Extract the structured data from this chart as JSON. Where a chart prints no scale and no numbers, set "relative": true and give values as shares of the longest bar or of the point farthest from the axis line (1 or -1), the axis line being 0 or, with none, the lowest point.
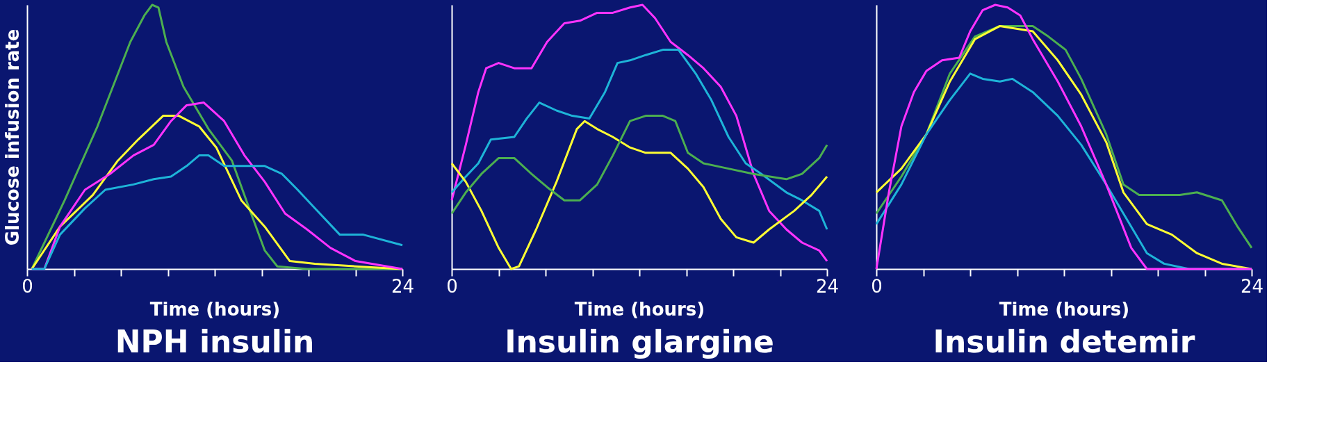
{
  "chart_data": [
    {
      "type": "line",
      "title": "NPH insulin",
      "xlabel": "Time (hours)",
      "ylabel": "Glucose infusion rate",
      "relative": true,
      "xlim": [
        0,
        24
      ],
      "xticks": [
        0,
        {
          "value": 3,
          "label": null
        },
        {
          "value": 6,
          "label": null
        },
        {
          "value": 9,
          "label": null
        },
        {
          "value": 12,
          "label": null
        },
        {
          "value": 15,
          "label": null
        },
        {
          "value": 18,
          "label": null
        },
        {
          "value": 21,
          "label": null
        },
        24
      ],
      "grid": false,
      "legend": false,
      "marker": "none",
      "line_style": "solid",
      "series": [
        {
          "color": "#4caf50",
          "x": [
            0.3,
            2.4,
            4.5,
            6.6,
            7.5,
            8.0,
            8.4,
            8.9,
            10.0,
            11.6,
            13.1,
            14.2,
            15.2,
            16.0,
            17.9,
            24.0
          ],
          "values": [
            0,
            0.26,
            0.54,
            0.86,
            0.96,
            1.0,
            0.99,
            0.86,
            0.69,
            0.53,
            0.41,
            0.23,
            0.07,
            0.01,
            0,
            0
          ]
        },
        {
          "color": "#ffff33",
          "x": [
            0.3,
            2.1,
            4.2,
            5.8,
            7.1,
            8.7,
            9.7,
            11.0,
            12.1,
            13.7,
            15.2,
            16.8,
            18.4,
            21.0,
            24.0
          ],
          "values": [
            0,
            0.16,
            0.28,
            0.41,
            0.49,
            0.58,
            0.58,
            0.54,
            0.46,
            0.26,
            0.16,
            0.03,
            0.02,
            0.01,
            0
          ]
        },
        {
          "color": "#ff33ff",
          "x": [
            0.3,
            1.1,
            2.1,
            3.7,
            5.3,
            6.8,
            8.1,
            9.2,
            10.2,
            11.3,
            12.6,
            13.9,
            15.2,
            16.5,
            17.9,
            19.4,
            21.0,
            24.0
          ],
          "values": [
            0,
            0,
            0.16,
            0.3,
            0.36,
            0.43,
            0.47,
            0.56,
            0.62,
            0.63,
            0.56,
            0.43,
            0.33,
            0.21,
            0.15,
            0.08,
            0.03,
            0
          ]
        },
        {
          "color": "#1eb4d8",
          "x": [
            0.3,
            1.1,
            2.1,
            3.7,
            5.0,
            6.8,
            8.1,
            9.2,
            10.2,
            11.0,
            11.6,
            12.6,
            15.2,
            16.3,
            17.3,
            18.4,
            20.0,
            21.5,
            24.0
          ],
          "values": [
            0,
            0,
            0.13,
            0.23,
            0.3,
            0.32,
            0.34,
            0.35,
            0.39,
            0.43,
            0.43,
            0.39,
            0.39,
            0.36,
            0.3,
            0.23,
            0.13,
            0.13,
            0.09
          ]
        }
      ]
    },
    {
      "type": "line",
      "title": "Insulin glargine",
      "xlabel": "Time (hours)",
      "relative": true,
      "xlim": [
        0,
        24
      ],
      "xticks": [
        0,
        {
          "value": 3,
          "label": null
        },
        {
          "value": 6,
          "label": null
        },
        {
          "value": 9,
          "label": null
        },
        {
          "value": 12,
          "label": null
        },
        {
          "value": 15,
          "label": null
        },
        {
          "value": 18,
          "label": null
        },
        {
          "value": 21,
          "label": null
        },
        24
      ],
      "grid": false,
      "legend": false,
      "marker": "none",
      "line_style": "solid",
      "series": [
        {
          "color": "#ff33ff",
          "x": [
            0,
            0.9,
            1.7,
            2.2,
            3.0,
            4.0,
            5.1,
            6.1,
            7.2,
            8.2,
            9.3,
            10.3,
            11.4,
            12.2,
            13.0,
            14.0,
            15.1,
            16.1,
            17.2,
            18.2,
            19.3,
            20.3,
            21.4,
            22.4,
            23.5,
            24.0
          ],
          "values": [
            0.26,
            0.47,
            0.67,
            0.76,
            0.78,
            0.76,
            0.76,
            0.86,
            0.93,
            0.94,
            0.97,
            0.97,
            0.99,
            1.0,
            0.95,
            0.86,
            0.81,
            0.76,
            0.69,
            0.58,
            0.36,
            0.22,
            0.15,
            0.1,
            0.07,
            0.03
          ]
        },
        {
          "color": "#1eb4d8",
          "x": [
            0,
            0.9,
            1.7,
            2.5,
            4.0,
            4.8,
            5.6,
            6.7,
            7.7,
            8.8,
            9.8,
            10.6,
            11.4,
            12.4,
            13.5,
            14.5,
            15.6,
            16.6,
            17.7,
            18.8,
            19.8,
            21.4,
            22.4,
            23.5,
            24.0
          ],
          "values": [
            0.29,
            0.35,
            0.4,
            0.49,
            0.5,
            0.57,
            0.63,
            0.6,
            0.58,
            0.57,
            0.67,
            0.78,
            0.79,
            0.81,
            0.83,
            0.83,
            0.74,
            0.64,
            0.5,
            0.4,
            0.36,
            0.29,
            0.26,
            0.22,
            0.15
          ]
        },
        {
          "color": "#ffff33",
          "x": [
            0,
            0.9,
            1.9,
            3.0,
            3.8,
            4.3,
            5.4,
            6.7,
            8.0,
            8.5,
            9.3,
            10.3,
            11.4,
            12.4,
            14.0,
            15.1,
            16.1,
            17.2,
            18.2,
            19.3,
            20.3,
            21.9,
            23.0,
            24.0
          ],
          "values": [
            0.4,
            0.33,
            0.22,
            0.08,
            0,
            0.01,
            0.15,
            0.33,
            0.53,
            0.56,
            0.53,
            0.5,
            0.46,
            0.44,
            0.44,
            0.38,
            0.31,
            0.19,
            0.12,
            0.1,
            0.15,
            0.22,
            0.28,
            0.35
          ]
        },
        {
          "color": "#4caf50",
          "x": [
            0,
            0.9,
            1.9,
            3.0,
            4.0,
            5.1,
            6.1,
            7.2,
            8.2,
            9.3,
            10.3,
            11.4,
            12.4,
            13.5,
            14.3,
            15.1,
            16.1,
            17.7,
            19.3,
            21.4,
            22.4,
            23.5,
            24.0
          ],
          "values": [
            0.21,
            0.29,
            0.36,
            0.42,
            0.42,
            0.36,
            0.31,
            0.26,
            0.26,
            0.32,
            0.43,
            0.56,
            0.58,
            0.58,
            0.56,
            0.44,
            0.4,
            0.38,
            0.36,
            0.34,
            0.36,
            0.42,
            0.47
          ]
        }
      ]
    },
    {
      "type": "line",
      "title": "Insulin detemir",
      "xlabel": "Time (hours)",
      "relative": true,
      "xlim": [
        0,
        24
      ],
      "xticks": [
        0,
        {
          "value": 3,
          "label": null
        },
        {
          "value": 6,
          "label": null
        },
        {
          "value": 9,
          "label": null
        },
        {
          "value": 12,
          "label": null
        },
        {
          "value": 15,
          "label": null
        },
        {
          "value": 18,
          "label": null
        },
        {
          "value": 21,
          "label": null
        },
        24
      ],
      "grid": false,
      "legend": false,
      "marker": "none",
      "line_style": "solid",
      "series": [
        {
          "color": "#4caf50",
          "x": [
            0,
            1.6,
            3.2,
            4.7,
            6.3,
            7.9,
            10.0,
            11.0,
            12.1,
            13.1,
            14.7,
            15.8,
            16.8,
            19.4,
            20.5,
            22.1,
            23.1,
            24.0
          ],
          "values": [
            0.21,
            0.35,
            0.51,
            0.74,
            0.88,
            0.92,
            0.92,
            0.88,
            0.83,
            0.72,
            0.51,
            0.32,
            0.28,
            0.28,
            0.29,
            0.26,
            0.16,
            0.08
          ]
        },
        {
          "color": "#ffff33",
          "x": [
            0,
            1.6,
            3.2,
            4.7,
            6.3,
            7.9,
            10.0,
            11.6,
            13.1,
            14.7,
            15.8,
            17.3,
            18.9,
            20.5,
            22.1,
            24.0
          ],
          "values": [
            0.29,
            0.38,
            0.51,
            0.71,
            0.87,
            0.92,
            0.9,
            0.79,
            0.66,
            0.48,
            0.29,
            0.17,
            0.13,
            0.06,
            0.02,
            0
          ]
        },
        {
          "color": "#1eb4d8",
          "x": [
            0,
            1.6,
            3.2,
            4.7,
            6.0,
            6.8,
            7.9,
            8.7,
            10.0,
            11.6,
            13.1,
            14.7,
            16.3,
            17.3,
            18.4,
            20.0,
            24.0
          ],
          "values": [
            0.17,
            0.32,
            0.51,
            0.64,
            0.74,
            0.72,
            0.71,
            0.72,
            0.67,
            0.58,
            0.47,
            0.32,
            0.16,
            0.06,
            0.02,
            0,
            0
          ]
        },
        {
          "color": "#ff33ff",
          "x": [
            0,
            0.8,
            1.6,
            2.4,
            3.2,
            4.2,
            5.3,
            6.0,
            6.8,
            7.6,
            8.4,
            9.2,
            10.0,
            11.6,
            13.1,
            14.7,
            16.3,
            17.3,
            24.0
          ],
          "values": [
            0,
            0.29,
            0.54,
            0.67,
            0.75,
            0.79,
            0.8,
            0.9,
            0.98,
            1.0,
            0.99,
            0.96,
            0.87,
            0.71,
            0.54,
            0.32,
            0.08,
            0,
            0
          ]
        }
      ]
    }
  ]
}
